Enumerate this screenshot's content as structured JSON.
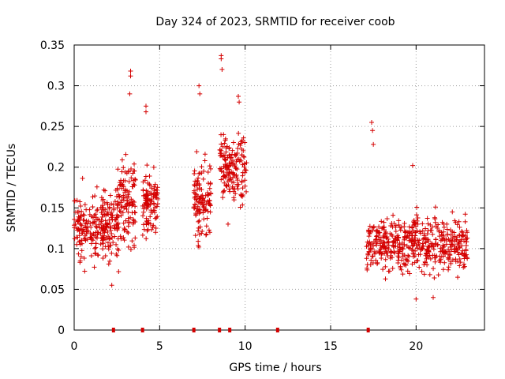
{
  "chart_data": {
    "type": "scatter",
    "title": "Day 324 of 2023, SRMTID for receiver coob",
    "xlabel": "GPS time / hours",
    "ylabel": "SRMTID / TECUs",
    "xlim": [
      0,
      24
    ],
    "ylim": [
      0,
      0.35
    ],
    "x_ticks": [
      0,
      5,
      10,
      15,
      20
    ],
    "x_tick_labels": [
      "0",
      "5",
      "10",
      "15",
      "20"
    ],
    "y_ticks": [
      0,
      0.05,
      0.1,
      0.15,
      0.2,
      0.25,
      0.3,
      0.35
    ],
    "y_tick_labels": [
      "0",
      "0.05",
      "0.1",
      "0.15",
      "0.2",
      "0.25",
      "0.3",
      "0.35"
    ],
    "grid": true,
    "marker": "+",
    "series_color": "#d40000",
    "clusters": [
      {
        "x0": 0.0,
        "x1": 2.6,
        "y_center": 0.125,
        "y_spread": 0.045,
        "count": 260
      },
      {
        "x0": 2.5,
        "x1": 3.6,
        "y_center": 0.16,
        "y_spread": 0.06,
        "count": 120
      },
      {
        "x0": 4.0,
        "x1": 4.9,
        "y_center": 0.155,
        "y_spread": 0.035,
        "count": 110
      },
      {
        "x0": 7.0,
        "x1": 8.0,
        "y_center": 0.16,
        "y_spread": 0.05,
        "count": 120
      },
      {
        "x0": 8.5,
        "x1": 10.1,
        "y_center": 0.2,
        "y_spread": 0.045,
        "count": 160
      },
      {
        "x0": 17.1,
        "x1": 23.0,
        "y_center": 0.105,
        "y_spread": 0.035,
        "count": 520
      }
    ],
    "peaks": [
      {
        "x": 3.3,
        "y": 0.318
      },
      {
        "x": 3.3,
        "y": 0.312
      },
      {
        "x": 3.25,
        "y": 0.29
      },
      {
        "x": 4.2,
        "y": 0.275
      },
      {
        "x": 4.2,
        "y": 0.268
      },
      {
        "x": 7.3,
        "y": 0.3
      },
      {
        "x": 7.35,
        "y": 0.29
      },
      {
        "x": 8.6,
        "y": 0.337
      },
      {
        "x": 8.6,
        "y": 0.333
      },
      {
        "x": 8.65,
        "y": 0.32
      },
      {
        "x": 9.6,
        "y": 0.287
      },
      {
        "x": 9.65,
        "y": 0.28
      },
      {
        "x": 17.4,
        "y": 0.255
      },
      {
        "x": 17.45,
        "y": 0.245
      },
      {
        "x": 17.5,
        "y": 0.228
      },
      {
        "x": 19.8,
        "y": 0.202
      },
      {
        "x": 2.2,
        "y": 0.055
      },
      {
        "x": 9.0,
        "y": 0.13
      },
      {
        "x": 21.0,
        "y": 0.04
      },
      {
        "x": 20.0,
        "y": 0.038
      }
    ],
    "zero_markers": [
      2.3,
      4.0,
      7.0,
      8.5,
      9.1,
      11.9,
      17.2
    ]
  }
}
